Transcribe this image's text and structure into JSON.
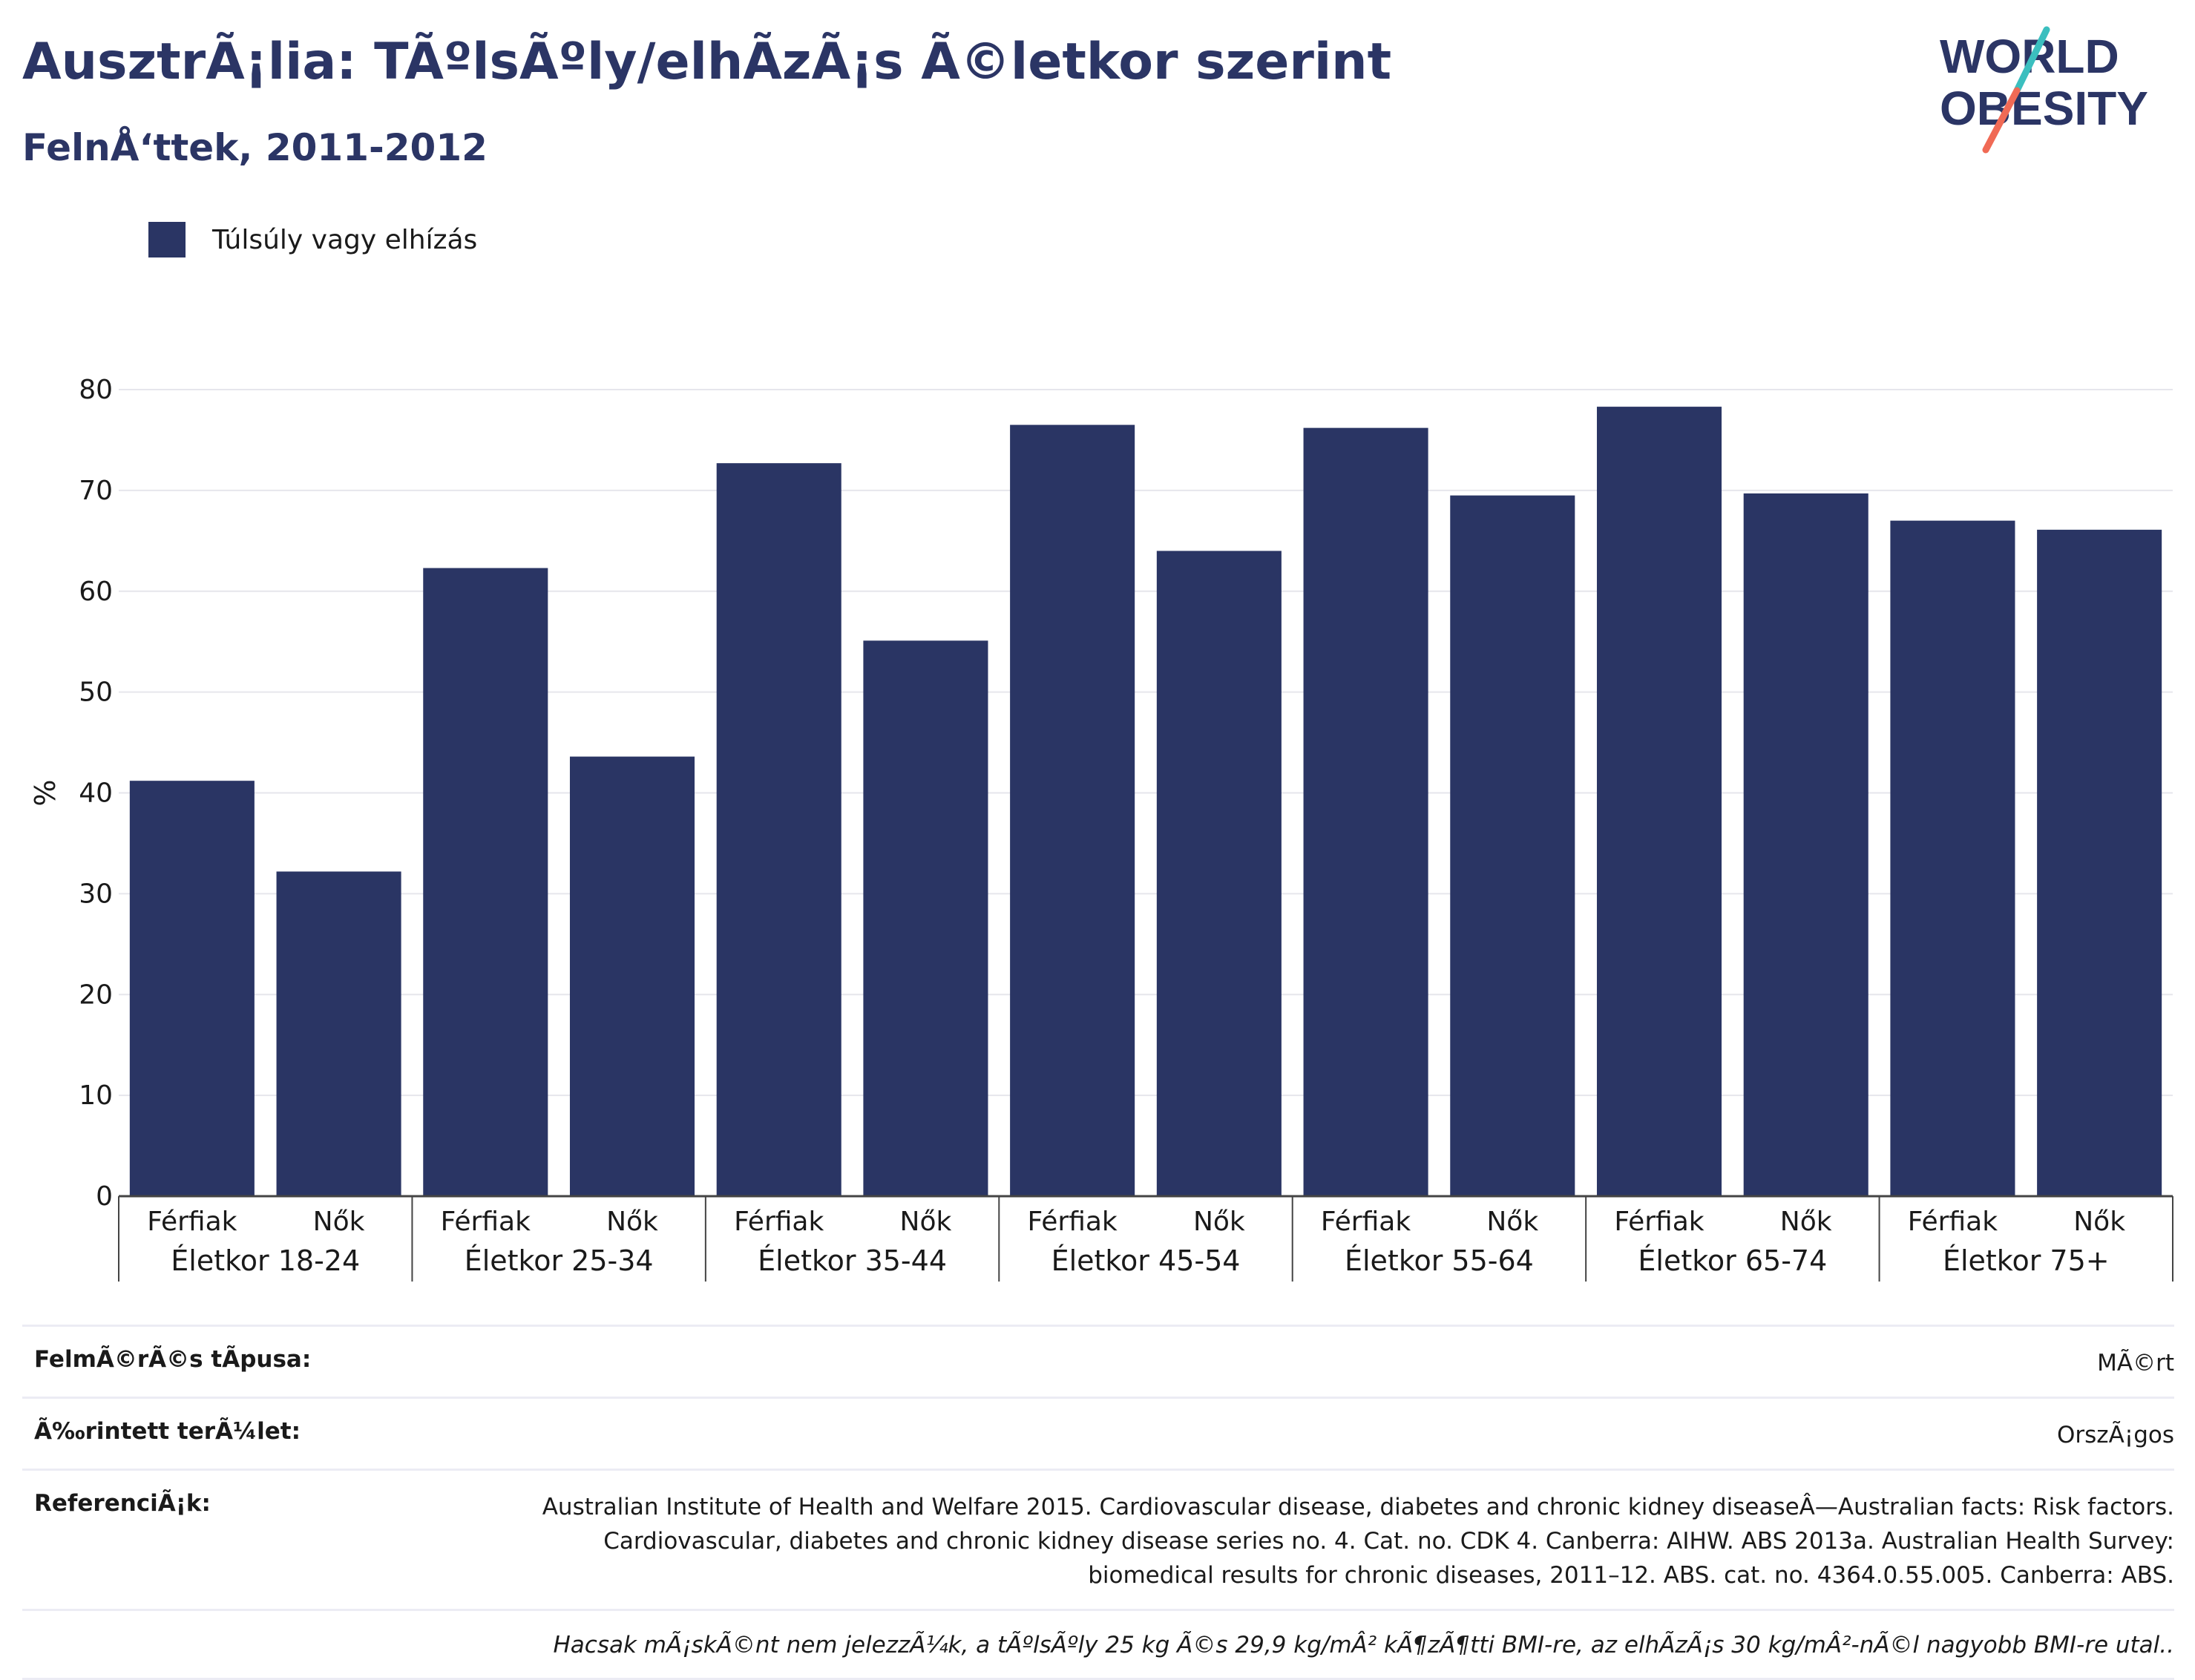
{
  "header": {
    "title": "AusztrÃ¡lia: TÃºlsÃºly/elhÃ­zÃ¡s Ã©letkor szerint",
    "subtitle": "FelnÅ‘ttek, 2011-2012"
  },
  "logo": {
    "line1": "WORLD",
    "line2": "OBESITY"
  },
  "colors": {
    "bar": "#2a3564",
    "title": "#2b3565",
    "grid": "#e6e6ec",
    "axis": "#444444",
    "logo_teal": "#3bbfbf",
    "logo_red": "#f06a55"
  },
  "chart_data": {
    "type": "bar",
    "title": "AusztrÃ¡lia: TÃºlsÃºly/elhÃ­zÃ¡s Ã©letkor szerint",
    "ylabel": "%",
    "ylim": [
      0,
      80
    ],
    "yticks": [
      0,
      10,
      20,
      30,
      40,
      50,
      60,
      70,
      80
    ],
    "grid": true,
    "legend_position": "top-left",
    "groups": [
      "Életkor 18-24",
      "Életkor 25-34",
      "Életkor 35-44",
      "Életkor 45-54",
      "Életkor 55-64",
      "Életkor 65-74",
      "Életkor 75+"
    ],
    "subcategories": [
      "Férfiak",
      "Nők"
    ],
    "series": [
      {
        "name": "Túlsúly vagy elhízás",
        "values": [
          [
            41.2,
            32.2
          ],
          [
            62.3,
            43.6
          ],
          [
            72.7,
            55.1
          ],
          [
            76.5,
            64.0
          ],
          [
            76.2,
            69.5
          ],
          [
            78.3,
            69.7
          ],
          [
            67.0,
            66.1
          ]
        ]
      }
    ]
  },
  "footer": {
    "rows": [
      {
        "label": "FelmÃ©rÃ©s tÃpusa:",
        "value": "MÃ©rt"
      },
      {
        "label": "Ã‰rintett terÃ¼let:",
        "value": "OrszÃ¡gos"
      },
      {
        "label": "ReferenciÃ¡k:",
        "value": "Australian Institute of Health and Welfare 2015. Cardiovascular disease, diabetes and chronic kidney diseaseÂ—Australian facts: Risk factors. Cardiovascular, diabetes and chronic kidney disease series no. 4. Cat. no. CDK 4. Canberra: AIHW. ABS 2013a. Australian Health Survey: biomedical results for chronic diseases, 2011–12. ABS. cat. no. 4364.0.55.005. Canberra: ABS."
      }
    ],
    "note": "Hacsak mÃ¡skÃ©nt nem jelezzÃ¼k, a tÃºlsÃºly 25 kg Ã©s 29,9 kg/mÂ² kÃ¶zÃ¶tti BMI-re, az elhÃ­zÃ¡s 30 kg/mÂ²-nÃ©l nagyobb BMI-re utal.."
  }
}
